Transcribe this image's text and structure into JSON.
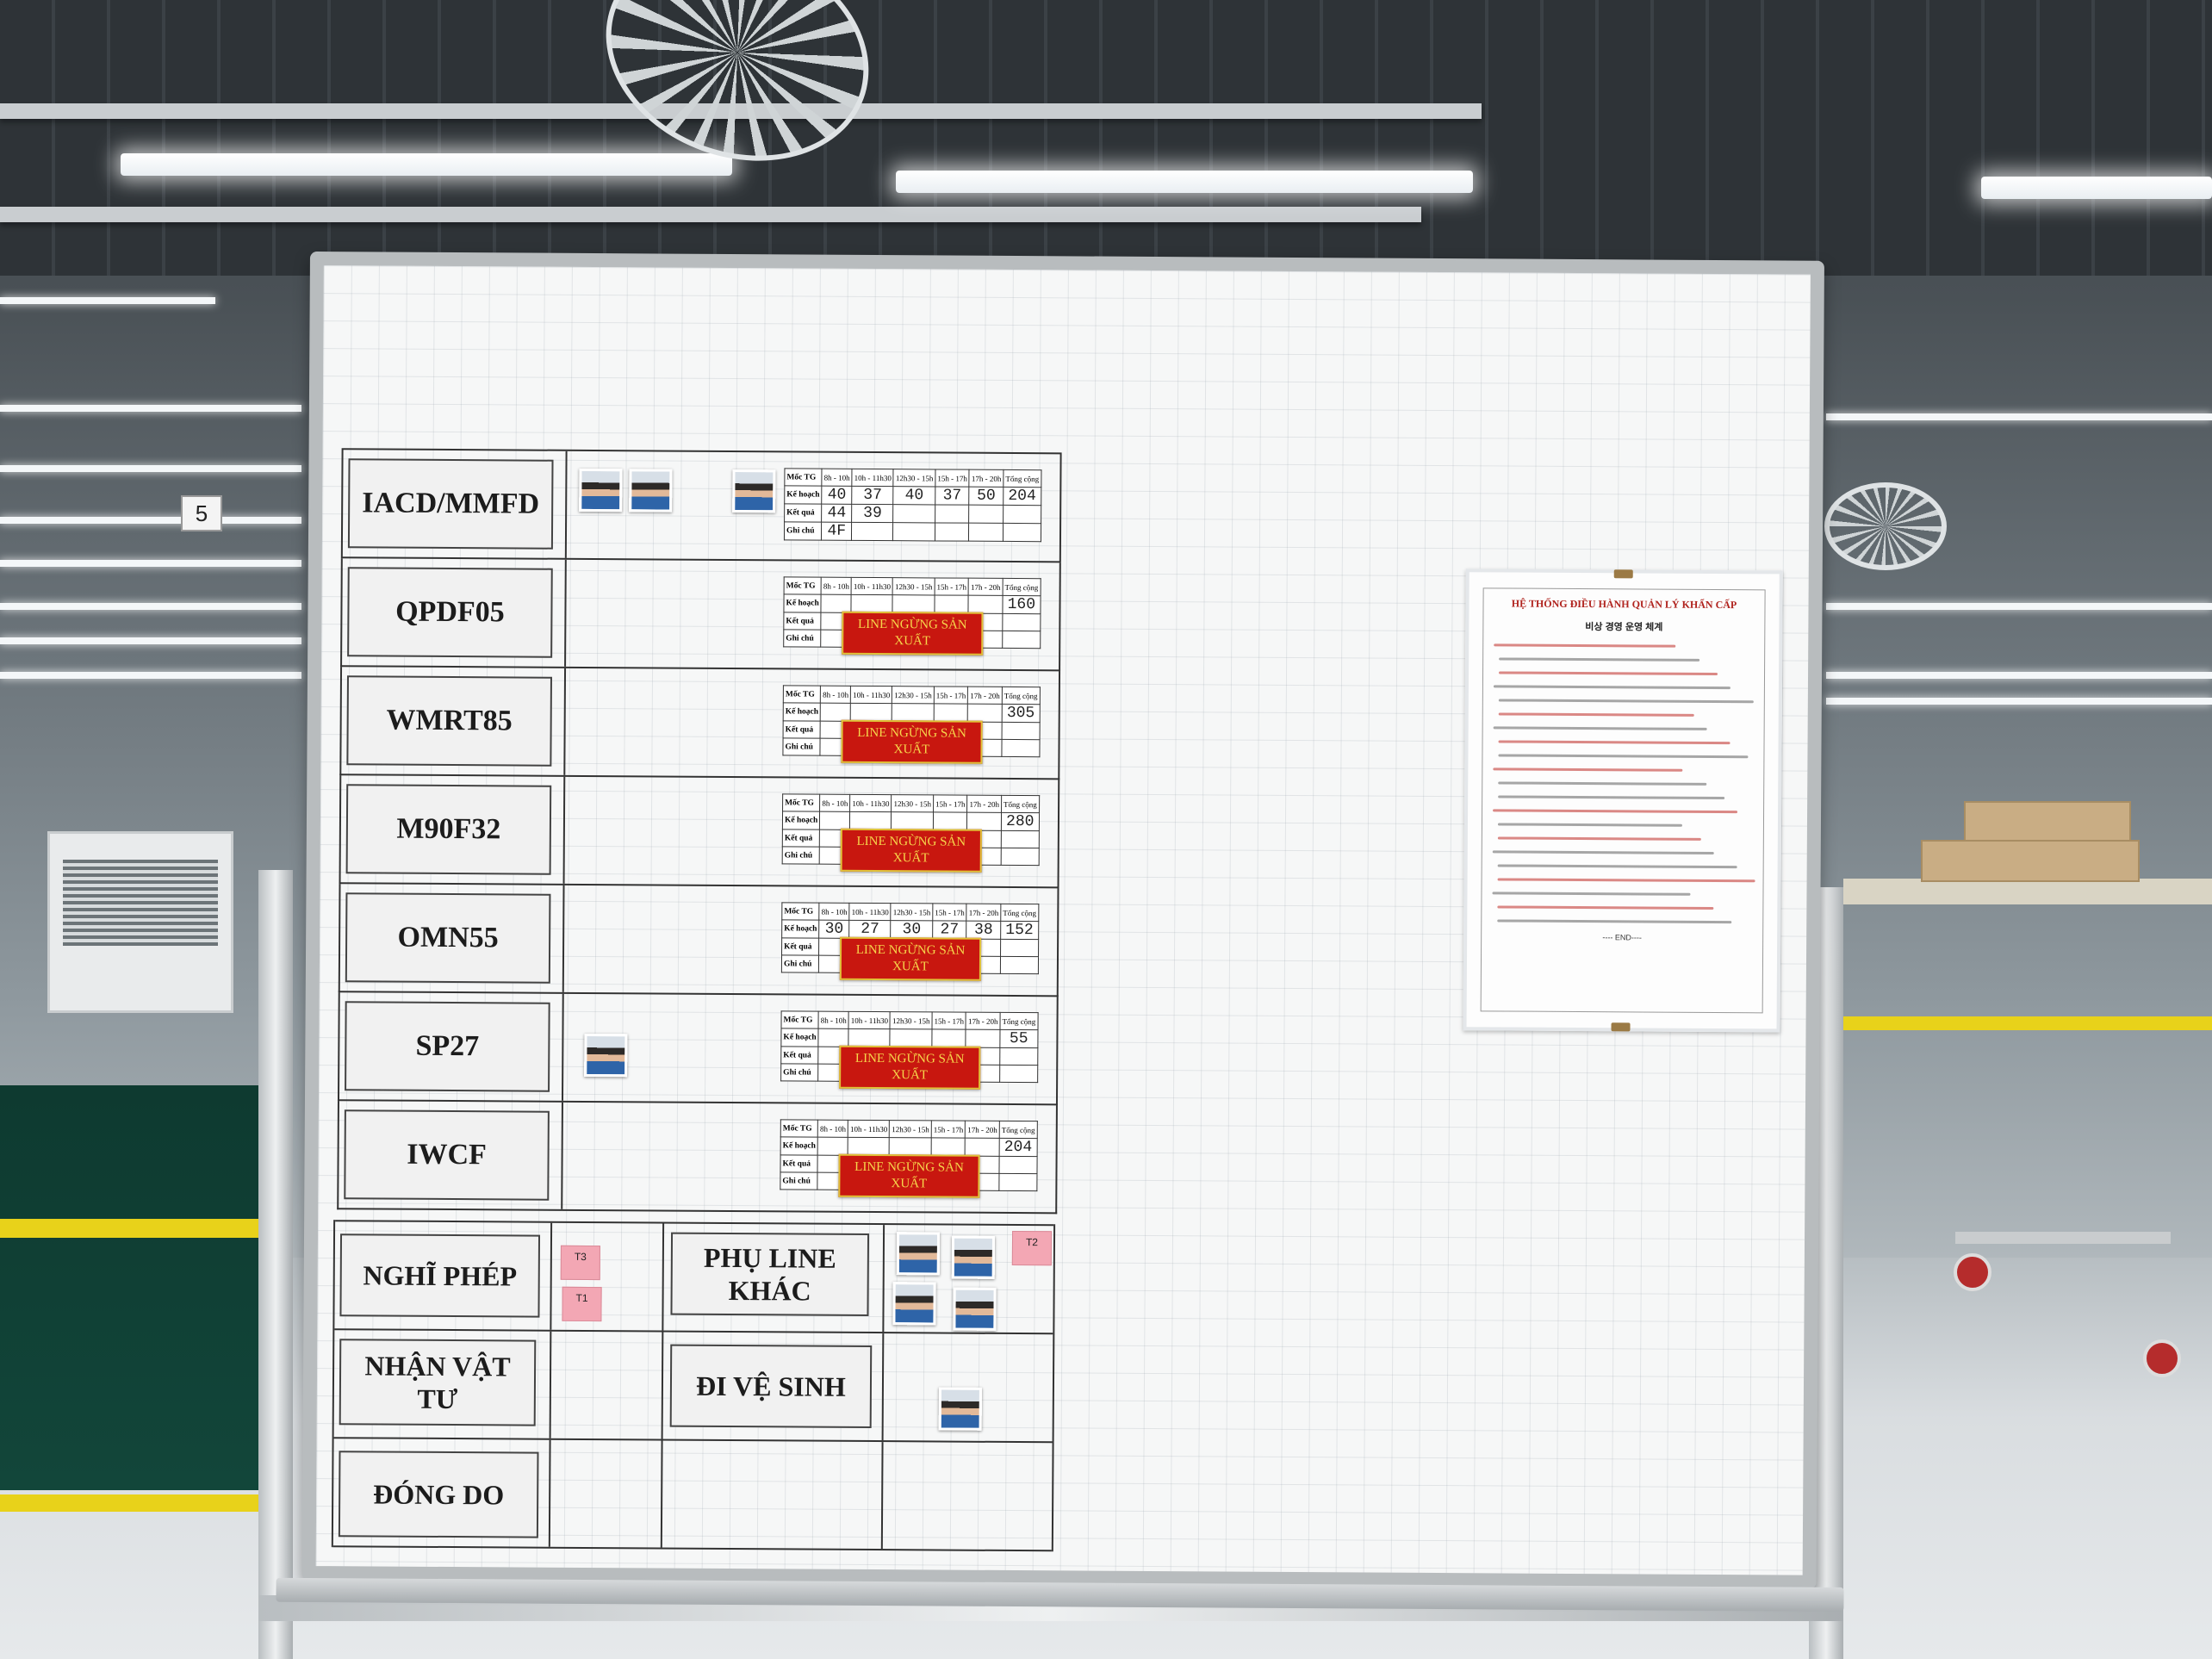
{
  "board": {
    "rows": [
      {
        "label": "IACD/MMFD",
        "photos": 3,
        "stop": false,
        "hours": [
          "8h - 10h",
          "10h - 11h30",
          "12h30 - 15h",
          "15h - 17h",
          "17h - 20h"
        ],
        "plan": [
          "40",
          "37",
          "40",
          "37",
          "50",
          "204"
        ],
        "result": [
          "44",
          "39"
        ],
        "note": [
          "4F"
        ]
      },
      {
        "label": "QPDF05",
        "photos": 0,
        "stop": true,
        "total": "160"
      },
      {
        "label": "WMRT85",
        "photos": 0,
        "stop": true,
        "total": "305"
      },
      {
        "label": "M90F32",
        "photos": 0,
        "stop": true,
        "total": "280"
      },
      {
        "label": "OMN55",
        "photos": 0,
        "stop": true,
        "plan": [
          "30",
          "27",
          "30",
          "27",
          "38",
          "152"
        ]
      },
      {
        "label": "SP27",
        "photos": 1,
        "stop": true,
        "total": "55"
      },
      {
        "label": "IWCF",
        "photos": 0,
        "stop": true,
        "total": "204"
      }
    ],
    "table_headers": {
      "milestone": "Mốc TG",
      "plan": "Kế hoạch",
      "result": "Kết quả",
      "note": "Ghi chú",
      "total": "Tổng cộng"
    },
    "stop_badge": "LINE NGỪNG SẢN XUẤT",
    "bottom": {
      "leave": "NGHĨ PHÉP",
      "help_other_line": "PHỤ LINE KHÁC",
      "receive_materials": "NHẬN VẬT TƯ",
      "restroom": "ĐI VỆ SINH",
      "packing": "ĐÓNG DO",
      "tags": {
        "t3": "T3",
        "t1": "T1",
        "t2": "T2"
      }
    },
    "notice": {
      "title": "HỆ THỐNG ĐIỀU HÀNH QUẢN LÝ KHẨN CẤP",
      "subtitle": "비상 경영 운영 체계",
      "end": "---- END----"
    },
    "post_number": "5"
  },
  "colors": {
    "stop_red": "#c8170f",
    "stop_text": "#f6d64b",
    "notice_red": "#b0231e",
    "tag_pink": "#f3a7b4"
  }
}
